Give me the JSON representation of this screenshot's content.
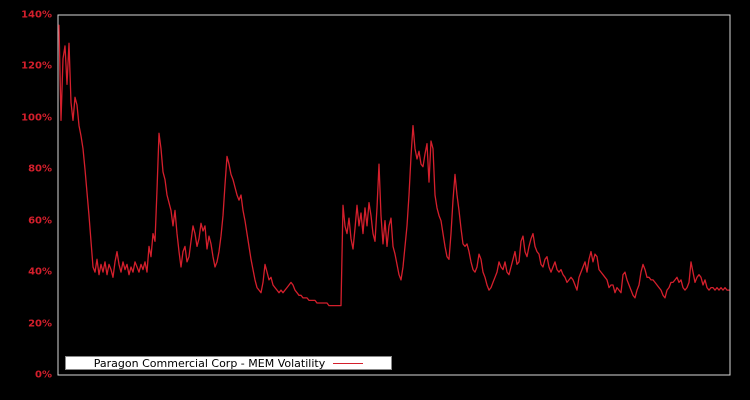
{
  "chart": {
    "legend_label": "Paragon Commercial Corp - MEM Volatility"
  },
  "chart_data": {
    "type": "line",
    "title": "Paragon Commercial Corp - MEM Volatility",
    "xlabel": "",
    "ylabel": "",
    "ylim": [
      0,
      140
    ],
    "ytick_values": [
      0,
      20,
      40,
      60,
      80,
      100,
      120,
      140
    ],
    "ytick_labels": [
      "0%",
      "20%",
      "40%",
      "60%",
      "80%",
      "100%",
      "120%",
      "140%"
    ],
    "xtick_labels": [],
    "grid": false,
    "legend_position": "bottom-left-inside",
    "colors": {
      "background": "#000000",
      "plot_border": "#d9d9d9",
      "line": "#d41f2c",
      "tick_label": "#d41f2c",
      "legend_bg": "#ffffff",
      "legend_text": "#000000"
    },
    "series": [
      {
        "name": "Paragon Commercial Corp - MEM Volatility",
        "unit": "%",
        "values": [
          136,
          99,
          123,
          128,
          113,
          129,
          106,
          99,
          108,
          105,
          97,
          93,
          88,
          80,
          71,
          62,
          52,
          42,
          40,
          45,
          39,
          43,
          40,
          44,
          39,
          43,
          41,
          38,
          44,
          48,
          43,
          40,
          44,
          41,
          43,
          39,
          42,
          40,
          44,
          42,
          40,
          43,
          41,
          44,
          40,
          50,
          46,
          55,
          52,
          72,
          94,
          88,
          79,
          76,
          70,
          67,
          64,
          58,
          64,
          55,
          48,
          42,
          48,
          50,
          44,
          46,
          52,
          58,
          55,
          50,
          53,
          59,
          56,
          58,
          49,
          54,
          51,
          46,
          42,
          44,
          48,
          54,
          62,
          74,
          85,
          82,
          78,
          76,
          73,
          70,
          68,
          70,
          64,
          60,
          55,
          50,
          45,
          41,
          37,
          34,
          33,
          32,
          36,
          43,
          40,
          37,
          38,
          35,
          34,
          33,
          32,
          33,
          32,
          33,
          34,
          35,
          36,
          35,
          33,
          32,
          31,
          31,
          30,
          30,
          30,
          29,
          29,
          29,
          29,
          28,
          28,
          28,
          28,
          28,
          28,
          27,
          27,
          27,
          27,
          27,
          27,
          27,
          66,
          58,
          55,
          61,
          53,
          49,
          57,
          66,
          58,
          63,
          55,
          65,
          58,
          67,
          62,
          55,
          52,
          65,
          82,
          62,
          51,
          60,
          50,
          58,
          61,
          50,
          47,
          43,
          39,
          37,
          42,
          50,
          58,
          70,
          85,
          97,
          88,
          84,
          87,
          82,
          81,
          86,
          90,
          75,
          91,
          88,
          70,
          65,
          62,
          60,
          55,
          50,
          46,
          45,
          55,
          68,
          78,
          70,
          64,
          57,
          51,
          50,
          51,
          48,
          44,
          41,
          40,
          42,
          47,
          45,
          40,
          38,
          35,
          33,
          34,
          36,
          38,
          40,
          44,
          42,
          41,
          44,
          40,
          39,
          42,
          45,
          48,
          43,
          44,
          52,
          54,
          48,
          46,
          50,
          53,
          55,
          50,
          48,
          47,
          43,
          42,
          45,
          46,
          42,
          40,
          42,
          44,
          41,
          40,
          41,
          39,
          38,
          36,
          37,
          38,
          37,
          35,
          33,
          38,
          40,
          42,
          44,
          40,
          45,
          48,
          44,
          47,
          46,
          41,
          40,
          39,
          38,
          37,
          34,
          35,
          35,
          32,
          34,
          33,
          32,
          39,
          40,
          37,
          35,
          33,
          31,
          30,
          33,
          35,
          40,
          43,
          41,
          38,
          38,
          37,
          37,
          36,
          35,
          34,
          33,
          31,
          30,
          33,
          34,
          36,
          36,
          37,
          38,
          36,
          37,
          34,
          33,
          34,
          36,
          44,
          40,
          36,
          38,
          39,
          38,
          35,
          37,
          34,
          33,
          34,
          34,
          33,
          34,
          33,
          34,
          33,
          34,
          33,
          33
        ]
      }
    ]
  }
}
